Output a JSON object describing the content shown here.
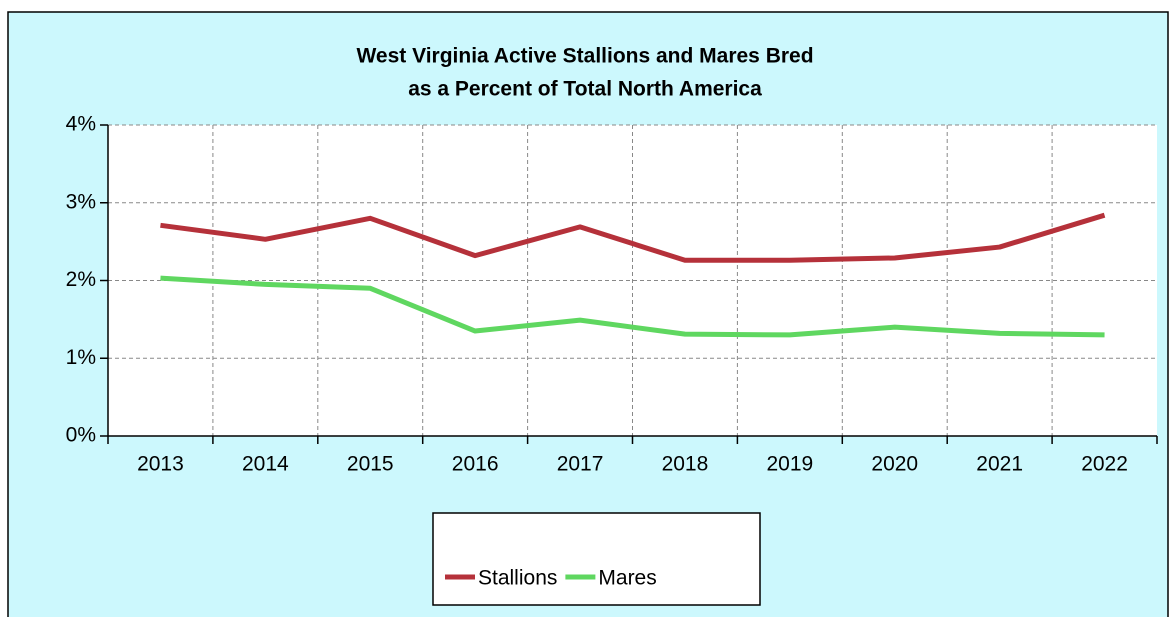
{
  "chart_data": {
    "type": "line",
    "title": [
      "West Virginia Active Stallions and Mares Bred",
      "as a Percent of Total North America"
    ],
    "categories": [
      "2013",
      "2014",
      "2015",
      "2016",
      "2017",
      "2018",
      "2019",
      "2020",
      "2021",
      "2022"
    ],
    "series": [
      {
        "name": "Stallions",
        "color": "#b5313a",
        "values": [
          2.71,
          2.53,
          2.8,
          2.32,
          2.69,
          2.26,
          2.26,
          2.29,
          2.43,
          2.84
        ]
      },
      {
        "name": "Mares",
        "color": "#5fd760",
        "values": [
          2.03,
          1.95,
          1.9,
          1.35,
          1.49,
          1.31,
          1.3,
          1.4,
          1.32,
          1.3
        ]
      }
    ],
    "ylim": [
      0,
      4
    ],
    "yticks": [
      {
        "value": 0,
        "label": "0%"
      },
      {
        "value": 1,
        "label": "1%"
      },
      {
        "value": 2,
        "label": "2%"
      },
      {
        "value": 3,
        "label": "3%"
      },
      {
        "value": 4,
        "label": "4%"
      }
    ],
    "grid": true,
    "legend": "bottom"
  }
}
